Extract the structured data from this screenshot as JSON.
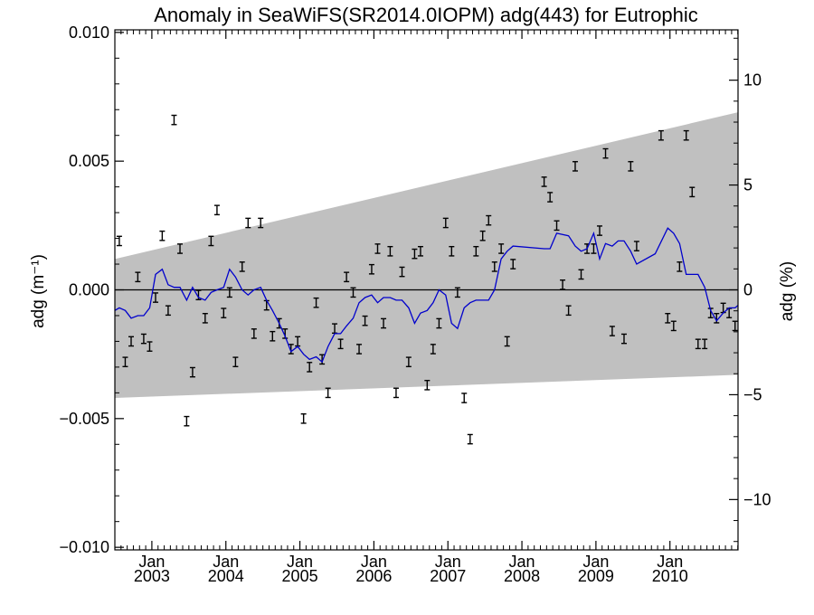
{
  "chart_data": {
    "type": "line",
    "title": "Anomaly in SeaWiFS(SR2014.0IOPM) adg(443) for Eutrophic",
    "ylabel_left": "adg (m⁻¹)",
    "ylabel_right": "adg (%)",
    "xlim": [
      2002.5,
      2010.92
    ],
    "ylim_left": [
      -0.0101,
      0.0101
    ],
    "ylim_right": [
      -12.4,
      12.4
    ],
    "left_ticks": [
      {
        "value": 0.01,
        "label": "0.010"
      },
      {
        "value": 0.005,
        "label": "0.005"
      },
      {
        "value": 0.0,
        "label": "0.000"
      },
      {
        "value": -0.005,
        "label": "−0.005"
      },
      {
        "value": -0.01,
        "label": "−0.010"
      }
    ],
    "right_ticks": [
      {
        "value": 10,
        "label": "10"
      },
      {
        "value": 5,
        "label": "5"
      },
      {
        "value": 0,
        "label": "0"
      },
      {
        "value": -5,
        "label": "−5"
      },
      {
        "value": -10,
        "label": "−10"
      }
    ],
    "x_ticks": [
      {
        "value": 2003.0,
        "month": "Jan",
        "year": "2003"
      },
      {
        "value": 2004.0,
        "month": "Jan",
        "year": "2004"
      },
      {
        "value": 2005.0,
        "month": "Jan",
        "year": "2005"
      },
      {
        "value": 2006.0,
        "month": "Jan",
        "year": "2006"
      },
      {
        "value": 2007.0,
        "month": "Jan",
        "year": "2007"
      },
      {
        "value": 2008.0,
        "month": "Jan",
        "year": "2008"
      },
      {
        "value": 2009.0,
        "month": "Jan",
        "year": "2009"
      },
      {
        "value": 2010.0,
        "month": "Jan",
        "year": "2010"
      }
    ],
    "band": {
      "color": "#c0c0c0",
      "upper": [
        [
          2002.5,
          0.0012
        ],
        [
          2010.92,
          0.0069
        ]
      ],
      "lower": [
        [
          2002.5,
          -0.0042
        ],
        [
          2010.92,
          -0.0033
        ]
      ]
    },
    "zero_line": true,
    "colors": {
      "line": "#0000cc",
      "errorbar": "#000000"
    },
    "series": [
      {
        "kind": "errorbar",
        "err": 0.00018,
        "points": [
          [
            2002.56,
            0.0019
          ],
          [
            2002.64,
            -0.0028
          ],
          [
            2002.72,
            -0.002
          ],
          [
            2002.81,
            0.0005
          ],
          [
            2002.89,
            -0.0019
          ],
          [
            2002.97,
            -0.0022
          ],
          [
            2003.05,
            -0.0003
          ],
          [
            2003.14,
            0.0021
          ],
          [
            2003.22,
            -0.0008
          ],
          [
            2003.3,
            0.0066
          ],
          [
            2003.38,
            0.0016
          ],
          [
            2003.47,
            -0.0051
          ],
          [
            2003.55,
            -0.0032
          ],
          [
            2003.63,
            -0.0002
          ],
          [
            2003.72,
            -0.0011
          ],
          [
            2003.8,
            0.0019
          ],
          [
            2003.88,
            0.0031
          ],
          [
            2003.97,
            -0.0009
          ],
          [
            2004.05,
            -0.0001
          ],
          [
            2004.13,
            -0.0028
          ],
          [
            2004.22,
            0.0009
          ],
          [
            2004.3,
            0.0026
          ],
          [
            2004.38,
            -0.0017
          ],
          [
            2004.47,
            0.0026
          ],
          [
            2004.55,
            -0.0006
          ],
          [
            2004.63,
            -0.0018
          ],
          [
            2004.72,
            -0.0013
          ],
          [
            2004.8,
            -0.0017
          ],
          [
            2004.88,
            -0.0023
          ],
          [
            2004.97,
            -0.002
          ],
          [
            2005.05,
            -0.005
          ],
          [
            2005.13,
            -0.003
          ],
          [
            2005.22,
            -0.0005
          ],
          [
            2005.3,
            -0.0027
          ],
          [
            2005.38,
            -0.004
          ],
          [
            2005.47,
            -0.0015
          ],
          [
            2005.55,
            -0.0021
          ],
          [
            2005.63,
            0.0005
          ],
          [
            2005.72,
            -0.0001
          ],
          [
            2005.8,
            -0.0023
          ],
          [
            2005.88,
            -0.0012
          ],
          [
            2005.97,
            0.0008
          ],
          [
            2006.05,
            0.0016
          ],
          [
            2006.13,
            -0.0013
          ],
          [
            2006.22,
            0.0015
          ],
          [
            2006.3,
            -0.004
          ],
          [
            2006.38,
            0.0007
          ],
          [
            2006.47,
            -0.0028
          ],
          [
            2006.55,
            0.0014
          ],
          [
            2006.63,
            0.0015
          ],
          [
            2006.72,
            -0.0037
          ],
          [
            2006.8,
            -0.0023
          ],
          [
            2006.88,
            -0.0013
          ],
          [
            2006.97,
            0.0026
          ],
          [
            2007.05,
            0.0015
          ],
          [
            2007.13,
            -0.0001
          ],
          [
            2007.22,
            -0.0042
          ],
          [
            2007.3,
            -0.0058
          ],
          [
            2007.38,
            0.0015
          ],
          [
            2007.47,
            0.0021
          ],
          [
            2007.55,
            0.0027
          ],
          [
            2007.63,
            0.0009
          ],
          [
            2007.72,
            0.0016
          ],
          [
            2007.8,
            -0.002
          ],
          [
            2007.88,
            0.001
          ],
          [
            2008.3,
            0.0042
          ],
          [
            2008.38,
            0.0036
          ],
          [
            2008.47,
            0.0025
          ],
          [
            2008.55,
            0.0002
          ],
          [
            2008.63,
            -0.0008
          ],
          [
            2008.72,
            0.0048
          ],
          [
            2008.8,
            0.0006
          ],
          [
            2008.88,
            0.0016
          ],
          [
            2008.97,
            0.0016
          ],
          [
            2009.05,
            0.0023
          ],
          [
            2009.13,
            0.0053
          ],
          [
            2009.22,
            -0.0016
          ],
          [
            2009.38,
            -0.0019
          ],
          [
            2009.47,
            0.0048
          ],
          [
            2009.55,
            0.0017
          ],
          [
            2009.88,
            0.006
          ],
          [
            2009.97,
            -0.0011
          ],
          [
            2010.05,
            -0.0014
          ],
          [
            2010.13,
            0.0009
          ],
          [
            2010.22,
            0.006
          ],
          [
            2010.3,
            0.0038
          ],
          [
            2010.38,
            -0.0021
          ],
          [
            2010.47,
            -0.0021
          ],
          [
            2010.55,
            -0.0009
          ],
          [
            2010.63,
            -0.0011
          ],
          [
            2010.72,
            -0.0007
          ],
          [
            2010.8,
            -0.0009
          ],
          [
            2010.88,
            -0.0014
          ]
        ]
      },
      {
        "kind": "line",
        "points": [
          [
            2002.5,
            -0.0008
          ],
          [
            2002.56,
            -0.0007
          ],
          [
            2002.64,
            -0.0008
          ],
          [
            2002.72,
            -0.0011
          ],
          [
            2002.81,
            -0.001
          ],
          [
            2002.89,
            -0.001
          ],
          [
            2002.97,
            -0.0007
          ],
          [
            2003.05,
            0.0006
          ],
          [
            2003.14,
            0.0008
          ],
          [
            2003.22,
            0.0002
          ],
          [
            2003.3,
            0.0001
          ],
          [
            2003.38,
            0.0001
          ],
          [
            2003.47,
            -0.0004
          ],
          [
            2003.55,
            0.0001
          ],
          [
            2003.63,
            -0.0003
          ],
          [
            2003.72,
            -0.0004
          ],
          [
            2003.8,
            -0.0001
          ],
          [
            2003.88,
            0.0
          ],
          [
            2003.97,
            0.0001
          ],
          [
            2004.05,
            0.0008
          ],
          [
            2004.13,
            0.0005
          ],
          [
            2004.22,
            0.0
          ],
          [
            2004.3,
            -0.0002
          ],
          [
            2004.38,
            0.0
          ],
          [
            2004.47,
            0.0001
          ],
          [
            2004.55,
            -0.0004
          ],
          [
            2004.63,
            -0.0008
          ],
          [
            2004.72,
            -0.0013
          ],
          [
            2004.8,
            -0.0018
          ],
          [
            2004.88,
            -0.0024
          ],
          [
            2004.97,
            -0.0022
          ],
          [
            2005.05,
            -0.0025
          ],
          [
            2005.13,
            -0.0027
          ],
          [
            2005.22,
            -0.0026
          ],
          [
            2005.3,
            -0.0028
          ],
          [
            2005.38,
            -0.0022
          ],
          [
            2005.47,
            -0.0017
          ],
          [
            2005.55,
            -0.0017
          ],
          [
            2005.63,
            -0.0014
          ],
          [
            2005.72,
            -0.0011
          ],
          [
            2005.8,
            -0.0005
          ],
          [
            2005.88,
            -0.0003
          ],
          [
            2005.97,
            -0.0002
          ],
          [
            2006.05,
            -0.0005
          ],
          [
            2006.13,
            -0.0003
          ],
          [
            2006.22,
            -0.0003
          ],
          [
            2006.3,
            -0.0004
          ],
          [
            2006.38,
            -0.0004
          ],
          [
            2006.47,
            -0.0007
          ],
          [
            2006.55,
            -0.0013
          ],
          [
            2006.63,
            -0.0009
          ],
          [
            2006.72,
            -0.0008
          ],
          [
            2006.8,
            -0.0005
          ],
          [
            2006.88,
            0.0
          ],
          [
            2006.97,
            -0.0002
          ],
          [
            2007.05,
            -0.0013
          ],
          [
            2007.13,
            -0.0015
          ],
          [
            2007.22,
            -0.0007
          ],
          [
            2007.3,
            -0.0005
          ],
          [
            2007.38,
            -0.0004
          ],
          [
            2007.47,
            -0.0004
          ],
          [
            2007.55,
            -0.0004
          ],
          [
            2007.63,
            0.0
          ],
          [
            2007.72,
            0.0012
          ],
          [
            2007.8,
            0.0015
          ],
          [
            2007.88,
            0.0017
          ],
          [
            2008.3,
            0.0016
          ],
          [
            2008.38,
            0.0016
          ],
          [
            2008.47,
            0.0022
          ],
          [
            2008.63,
            0.0021
          ],
          [
            2008.72,
            0.0017
          ],
          [
            2008.8,
            0.0015
          ],
          [
            2008.88,
            0.0016
          ],
          [
            2008.97,
            0.0022
          ],
          [
            2009.05,
            0.0012
          ],
          [
            2009.13,
            0.0018
          ],
          [
            2009.22,
            0.0017
          ],
          [
            2009.3,
            0.0019
          ],
          [
            2009.38,
            0.0019
          ],
          [
            2009.47,
            0.0015
          ],
          [
            2009.55,
            0.001
          ],
          [
            2009.8,
            0.0014
          ],
          [
            2009.97,
            0.0024
          ],
          [
            2010.05,
            0.0022
          ],
          [
            2010.13,
            0.0018
          ],
          [
            2010.22,
            0.0006
          ],
          [
            2010.3,
            0.0006
          ],
          [
            2010.38,
            0.0006
          ],
          [
            2010.47,
            0.0001
          ],
          [
            2010.55,
            -0.0008
          ],
          [
            2010.63,
            -0.0012
          ],
          [
            2010.72,
            -0.0009
          ],
          [
            2010.8,
            -0.0007
          ],
          [
            2010.88,
            -0.0007
          ],
          [
            2010.92,
            -0.0006
          ]
        ]
      }
    ]
  }
}
